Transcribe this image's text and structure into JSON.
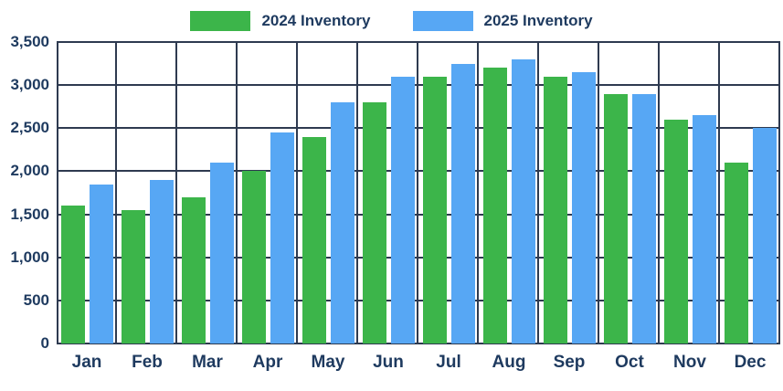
{
  "colors": {
    "green": "#3CB54A",
    "blue": "#57A7F4",
    "text": "#1E3A5F",
    "grid": "#2E3A50",
    "background": "#FFFFFF"
  },
  "legend": {
    "item_2024_label": "2024 Inventory",
    "item_2025_label": "2025 Inventory"
  },
  "chart_data": {
    "type": "bar",
    "title": "",
    "xlabel": "",
    "ylabel": "",
    "categories": [
      "Jan",
      "Feb",
      "Mar",
      "Apr",
      "May",
      "Jun",
      "Jul",
      "Aug",
      "Sep",
      "Oct",
      "Nov",
      "Dec"
    ],
    "series": [
      {
        "name": "2024 Inventory",
        "color": "#3CB54A",
        "values": [
          1600,
          1550,
          1700,
          2000,
          2400,
          2800,
          3100,
          3200,
          3100,
          2900,
          2600,
          2100
        ]
      },
      {
        "name": "2025 Inventory",
        "color": "#57A7F4",
        "values": [
          1850,
          1900,
          2100,
          2450,
          2800,
          3100,
          3250,
          3300,
          3150,
          2900,
          2650,
          2500
        ]
      }
    ],
    "ylim": [
      0,
      3500
    ],
    "ytick_step": 500,
    "ytick_labels": [
      "0",
      "500",
      "1,000",
      "1,500",
      "2,000",
      "2,500",
      "3,000",
      "3,500"
    ],
    "grid": true,
    "legend_position": "top"
  }
}
